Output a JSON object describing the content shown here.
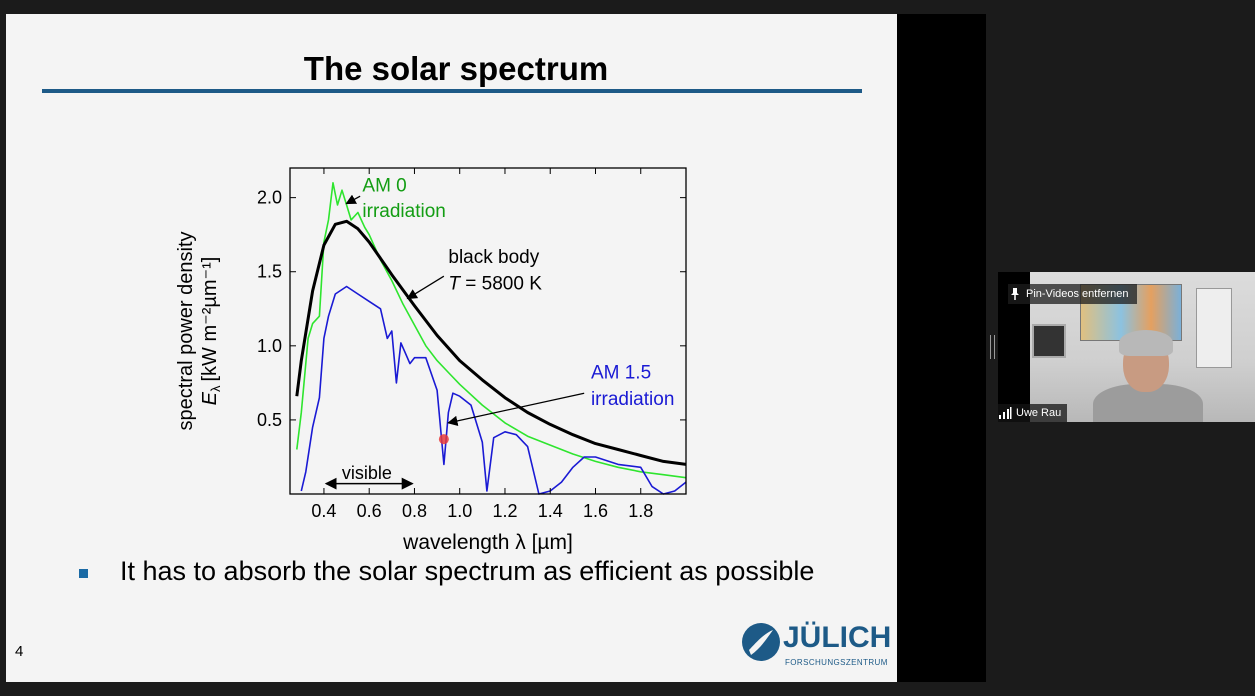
{
  "slide": {
    "title": "The solar spectrum",
    "bullet": "It has to absorb the solar spectrum as efficient as possible",
    "page_number": "4",
    "logo_name": "JÜLICH",
    "logo_subtitle": "FORSCHUNGSZENTRUM",
    "colors": {
      "accent": "#1d5a87",
      "am0": "#2ee52e",
      "am15": "#1a1ad4",
      "blackbody": "#000000",
      "pointer": "#e83a3a"
    }
  },
  "chart_data": {
    "type": "line",
    "xlabel": "wavelength λ [µm]",
    "ylabel_line1": "spectral power density",
    "ylabel_line2": "E",
    "ylabel_sub": "λ",
    "ylabel_unit": "[kW m⁻²µm⁻¹]",
    "xlim": [
      0.25,
      2.0
    ],
    "ylim": [
      0,
      2.2
    ],
    "x_ticks": [
      "0.4",
      "0.6",
      "0.8",
      "1.0",
      "1.2",
      "1.4",
      "1.6",
      "1.8"
    ],
    "y_ticks": [
      "0.5",
      "1.0",
      "1.5",
      "2.0"
    ],
    "annotations": {
      "am0": [
        "AM 0",
        "irradiation"
      ],
      "blackbody": [
        "black body",
        "T",
        " = 5800 K"
      ],
      "am15": [
        "AM 1.5",
        "irradiation"
      ],
      "visible": "visible"
    },
    "series": [
      {
        "name": "AM 0 irradiation",
        "color": "#2ee52e",
        "x": [
          0.28,
          0.3,
          0.33,
          0.35,
          0.38,
          0.4,
          0.42,
          0.44,
          0.46,
          0.48,
          0.5,
          0.52,
          0.55,
          0.58,
          0.6,
          0.65,
          0.7,
          0.75,
          0.8,
          0.85,
          0.9,
          0.95,
          1.0,
          1.1,
          1.2,
          1.3,
          1.4,
          1.5,
          1.6,
          1.7,
          1.8,
          1.9,
          2.0
        ],
        "y": [
          0.3,
          0.55,
          1.05,
          1.15,
          1.2,
          1.7,
          1.85,
          2.1,
          1.95,
          2.05,
          1.95,
          1.85,
          1.9,
          1.8,
          1.75,
          1.58,
          1.44,
          1.28,
          1.14,
          1.0,
          0.9,
          0.82,
          0.74,
          0.6,
          0.48,
          0.39,
          0.33,
          0.27,
          0.22,
          0.18,
          0.15,
          0.13,
          0.11
        ]
      },
      {
        "name": "black body T = 5800 K",
        "color": "#000000",
        "x": [
          0.28,
          0.3,
          0.35,
          0.4,
          0.45,
          0.5,
          0.55,
          0.6,
          0.7,
          0.8,
          0.9,
          1.0,
          1.1,
          1.2,
          1.3,
          1.4,
          1.5,
          1.6,
          1.7,
          1.8,
          1.9,
          2.0
        ],
        "y": [
          0.66,
          0.9,
          1.37,
          1.68,
          1.82,
          1.84,
          1.79,
          1.7,
          1.48,
          1.27,
          1.07,
          0.9,
          0.77,
          0.65,
          0.55,
          0.47,
          0.4,
          0.34,
          0.3,
          0.26,
          0.22,
          0.2
        ]
      },
      {
        "name": "AM 1.5 irradiation",
        "color": "#1a1ad4",
        "x": [
          0.3,
          0.32,
          0.35,
          0.38,
          0.4,
          0.42,
          0.45,
          0.5,
          0.55,
          0.6,
          0.65,
          0.68,
          0.7,
          0.72,
          0.74,
          0.76,
          0.78,
          0.8,
          0.85,
          0.9,
          0.93,
          0.95,
          0.97,
          1.0,
          1.05,
          1.1,
          1.12,
          1.15,
          1.2,
          1.25,
          1.3,
          1.35,
          1.4,
          1.45,
          1.5,
          1.55,
          1.6,
          1.7,
          1.8,
          1.85,
          1.9,
          1.95,
          2.0
        ],
        "y": [
          0.02,
          0.15,
          0.45,
          0.65,
          1.05,
          1.2,
          1.35,
          1.4,
          1.35,
          1.3,
          1.25,
          1.05,
          1.1,
          0.75,
          1.02,
          0.95,
          0.88,
          0.92,
          0.92,
          0.7,
          0.2,
          0.55,
          0.68,
          0.66,
          0.6,
          0.35,
          0.02,
          0.38,
          0.42,
          0.4,
          0.32,
          0.0,
          0.02,
          0.08,
          0.18,
          0.25,
          0.25,
          0.2,
          0.18,
          0.05,
          0.0,
          0.02,
          0.08
        ]
      }
    ]
  },
  "video": {
    "pin_label": "Pin-Videos entfernen",
    "participant_name": "Uwe Rau"
  }
}
